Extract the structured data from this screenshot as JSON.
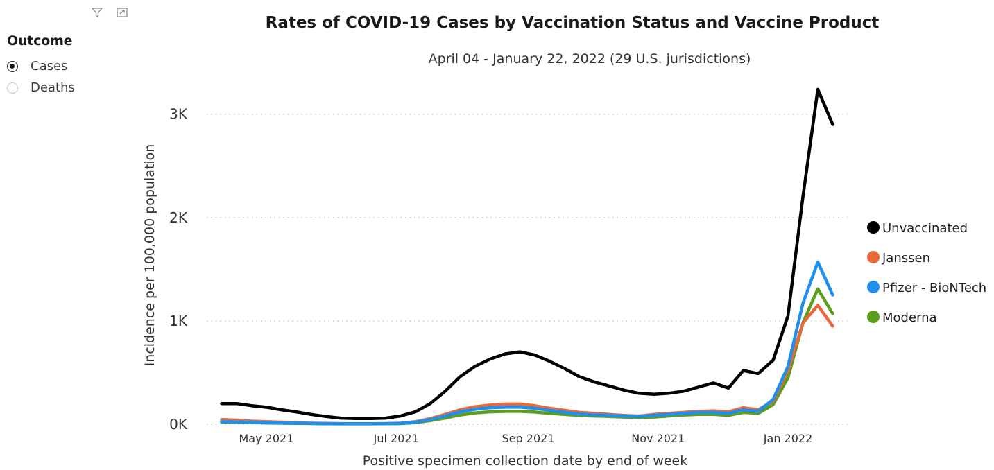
{
  "toolbar": {
    "icons": [
      "filter-icon",
      "focus-mode-icon"
    ]
  },
  "slicer": {
    "title": "Outcome",
    "options": [
      {
        "label": "Cases",
        "selected": true
      },
      {
        "label": "Deaths",
        "selected": false
      }
    ]
  },
  "chart_data": {
    "type": "line",
    "title": "Rates of COVID-19 Cases by Vaccination Status and Vaccine Product",
    "subtitle": "April 04 - January 22, 2022 (29 U.S. jurisdictions)",
    "xlabel": "Positive specimen collection date by end of week",
    "ylabel": "Incidence per 100,000 population",
    "x_ticks": [
      "May 2021",
      "Jul 2021",
      "Sep 2021",
      "Nov 2021",
      "Jan 2022"
    ],
    "x_tick_dates": [
      "2021-05-01",
      "2021-07-01",
      "2021-09-01",
      "2021-11-01",
      "2022-01-01"
    ],
    "y_ticks": [
      "0K",
      "1K",
      "2K",
      "3K"
    ],
    "y_tick_values": [
      0,
      1000,
      2000,
      3000
    ],
    "ylim": [
      0,
      3300
    ],
    "xlim": [
      "2021-04-03",
      "2022-01-29"
    ],
    "grid": "horizontal-dotted",
    "legend_position": "right",
    "x": [
      "2021-04-10",
      "2021-04-17",
      "2021-04-24",
      "2021-05-01",
      "2021-05-08",
      "2021-05-15",
      "2021-05-22",
      "2021-05-29",
      "2021-06-05",
      "2021-06-12",
      "2021-06-19",
      "2021-06-26",
      "2021-07-03",
      "2021-07-10",
      "2021-07-17",
      "2021-07-24",
      "2021-07-31",
      "2021-08-07",
      "2021-08-14",
      "2021-08-21",
      "2021-08-28",
      "2021-09-04",
      "2021-09-11",
      "2021-09-18",
      "2021-09-25",
      "2021-10-02",
      "2021-10-09",
      "2021-10-16",
      "2021-10-23",
      "2021-10-30",
      "2021-11-06",
      "2021-11-13",
      "2021-11-20",
      "2021-11-27",
      "2021-12-04",
      "2021-12-11",
      "2021-12-18",
      "2021-12-25",
      "2022-01-01",
      "2022-01-08",
      "2022-01-15",
      "2022-01-22"
    ],
    "series": [
      {
        "name": "Unvaccinated",
        "color": "#000000",
        "values": [
          200,
          200,
          180,
          165,
          140,
          120,
          95,
          75,
          60,
          55,
          55,
          60,
          80,
          120,
          200,
          320,
          460,
          560,
          630,
          680,
          700,
          670,
          610,
          540,
          460,
          410,
          370,
          330,
          300,
          290,
          300,
          320,
          360,
          400,
          350,
          520,
          490,
          620,
          1050,
          2200,
          3240,
          2900
        ]
      },
      {
        "name": "Janssen",
        "color": "#e8693b",
        "values": [
          45,
          40,
          30,
          25,
          20,
          15,
          10,
          8,
          6,
          5,
          5,
          6,
          10,
          25,
          55,
          95,
          140,
          170,
          185,
          195,
          195,
          180,
          155,
          135,
          115,
          105,
          95,
          85,
          80,
          95,
          105,
          115,
          125,
          130,
          120,
          160,
          140,
          225,
          520,
          980,
          1150,
          950
        ]
      },
      {
        "name": "Pfizer - BioNTech",
        "color": "#1e8fef",
        "values": [
          25,
          22,
          18,
          15,
          12,
          10,
          8,
          6,
          5,
          5,
          5,
          6,
          8,
          20,
          45,
          80,
          120,
          145,
          160,
          165,
          165,
          155,
          135,
          115,
          100,
          90,
          85,
          80,
          75,
          85,
          95,
          105,
          115,
          115,
          105,
          140,
          125,
          240,
          560,
          1170,
          1570,
          1250
        ]
      },
      {
        "name": "Moderna",
        "color": "#5b9e1b",
        "values": [
          20,
          18,
          15,
          12,
          10,
          8,
          7,
          5,
          4,
          4,
          4,
          5,
          6,
          15,
          35,
          60,
          90,
          110,
          120,
          125,
          125,
          118,
          105,
          95,
          85,
          80,
          75,
          70,
          65,
          70,
          80,
          90,
          95,
          95,
          85,
          115,
          105,
          190,
          450,
          980,
          1310,
          1070
        ]
      }
    ]
  }
}
